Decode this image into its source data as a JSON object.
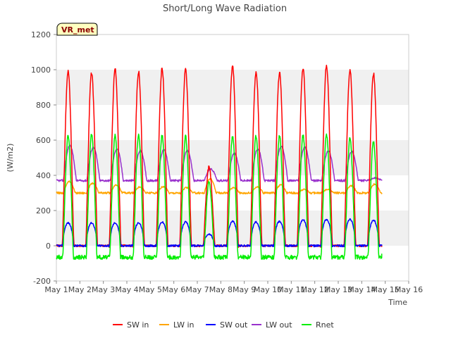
{
  "chart_data": {
    "type": "line",
    "title": "Short/Long Wave Radiation",
    "xlabel": "Time",
    "ylabel": "(W/m2)",
    "site_label": "VR_met",
    "xlim": [
      1,
      16
    ],
    "ylim": [
      -200,
      1200
    ],
    "x_ticks": [
      1,
      2,
      3,
      4,
      5,
      6,
      7,
      8,
      9,
      10,
      11,
      12,
      13,
      14,
      15,
      16
    ],
    "x_tick_labels": [
      "May 1",
      "May 2",
      "May 3",
      "May 4",
      "May 5",
      "May 6",
      "May 7",
      "May 8",
      "May 9",
      "May 10",
      "May 11",
      "May 12",
      "May 13",
      "May 14",
      "May 15",
      "May 16"
    ],
    "y_ticks": [
      -200,
      0,
      200,
      400,
      600,
      800,
      1000,
      1200
    ],
    "y_tick_labels": [
      "-200",
      "0",
      "200",
      "400",
      "600",
      "800",
      "1000",
      "1200"
    ],
    "grid": "horizontal bands",
    "legend_position": "bottom",
    "series": [
      {
        "name": "SW in",
        "color": "#ff0000",
        "day_peaks": [
          990,
          980,
          1005,
          990,
          1005,
          998,
          450,
          1020,
          988,
          982,
          1008,
          1022,
          995,
          978
        ],
        "night": 0
      },
      {
        "name": "LW in",
        "color": "#ffa500",
        "day_peaks": [
          365,
          355,
          345,
          335,
          335,
          330,
          380,
          330,
          335,
          345,
          320,
          320,
          340,
          350
        ],
        "night": 300
      },
      {
        "name": "SW out",
        "color": "#0000ff",
        "day_peaks": [
          130,
          130,
          130,
          130,
          135,
          135,
          65,
          140,
          135,
          138,
          148,
          150,
          150,
          145
        ],
        "night": 0
      },
      {
        "name": "LW out",
        "color": "#9932cc",
        "day_peaks": [
          570,
          560,
          550,
          540,
          545,
          540,
          435,
          525,
          550,
          565,
          560,
          540,
          535,
          385
        ],
        "night": 370
      },
      {
        "name": "Rnet",
        "color": "#00ee00",
        "day_peaks": [
          625,
          630,
          625,
          628,
          625,
          620,
          360,
          620,
          625,
          622,
          625,
          628,
          610,
          590
        ],
        "night": -65
      }
    ]
  }
}
